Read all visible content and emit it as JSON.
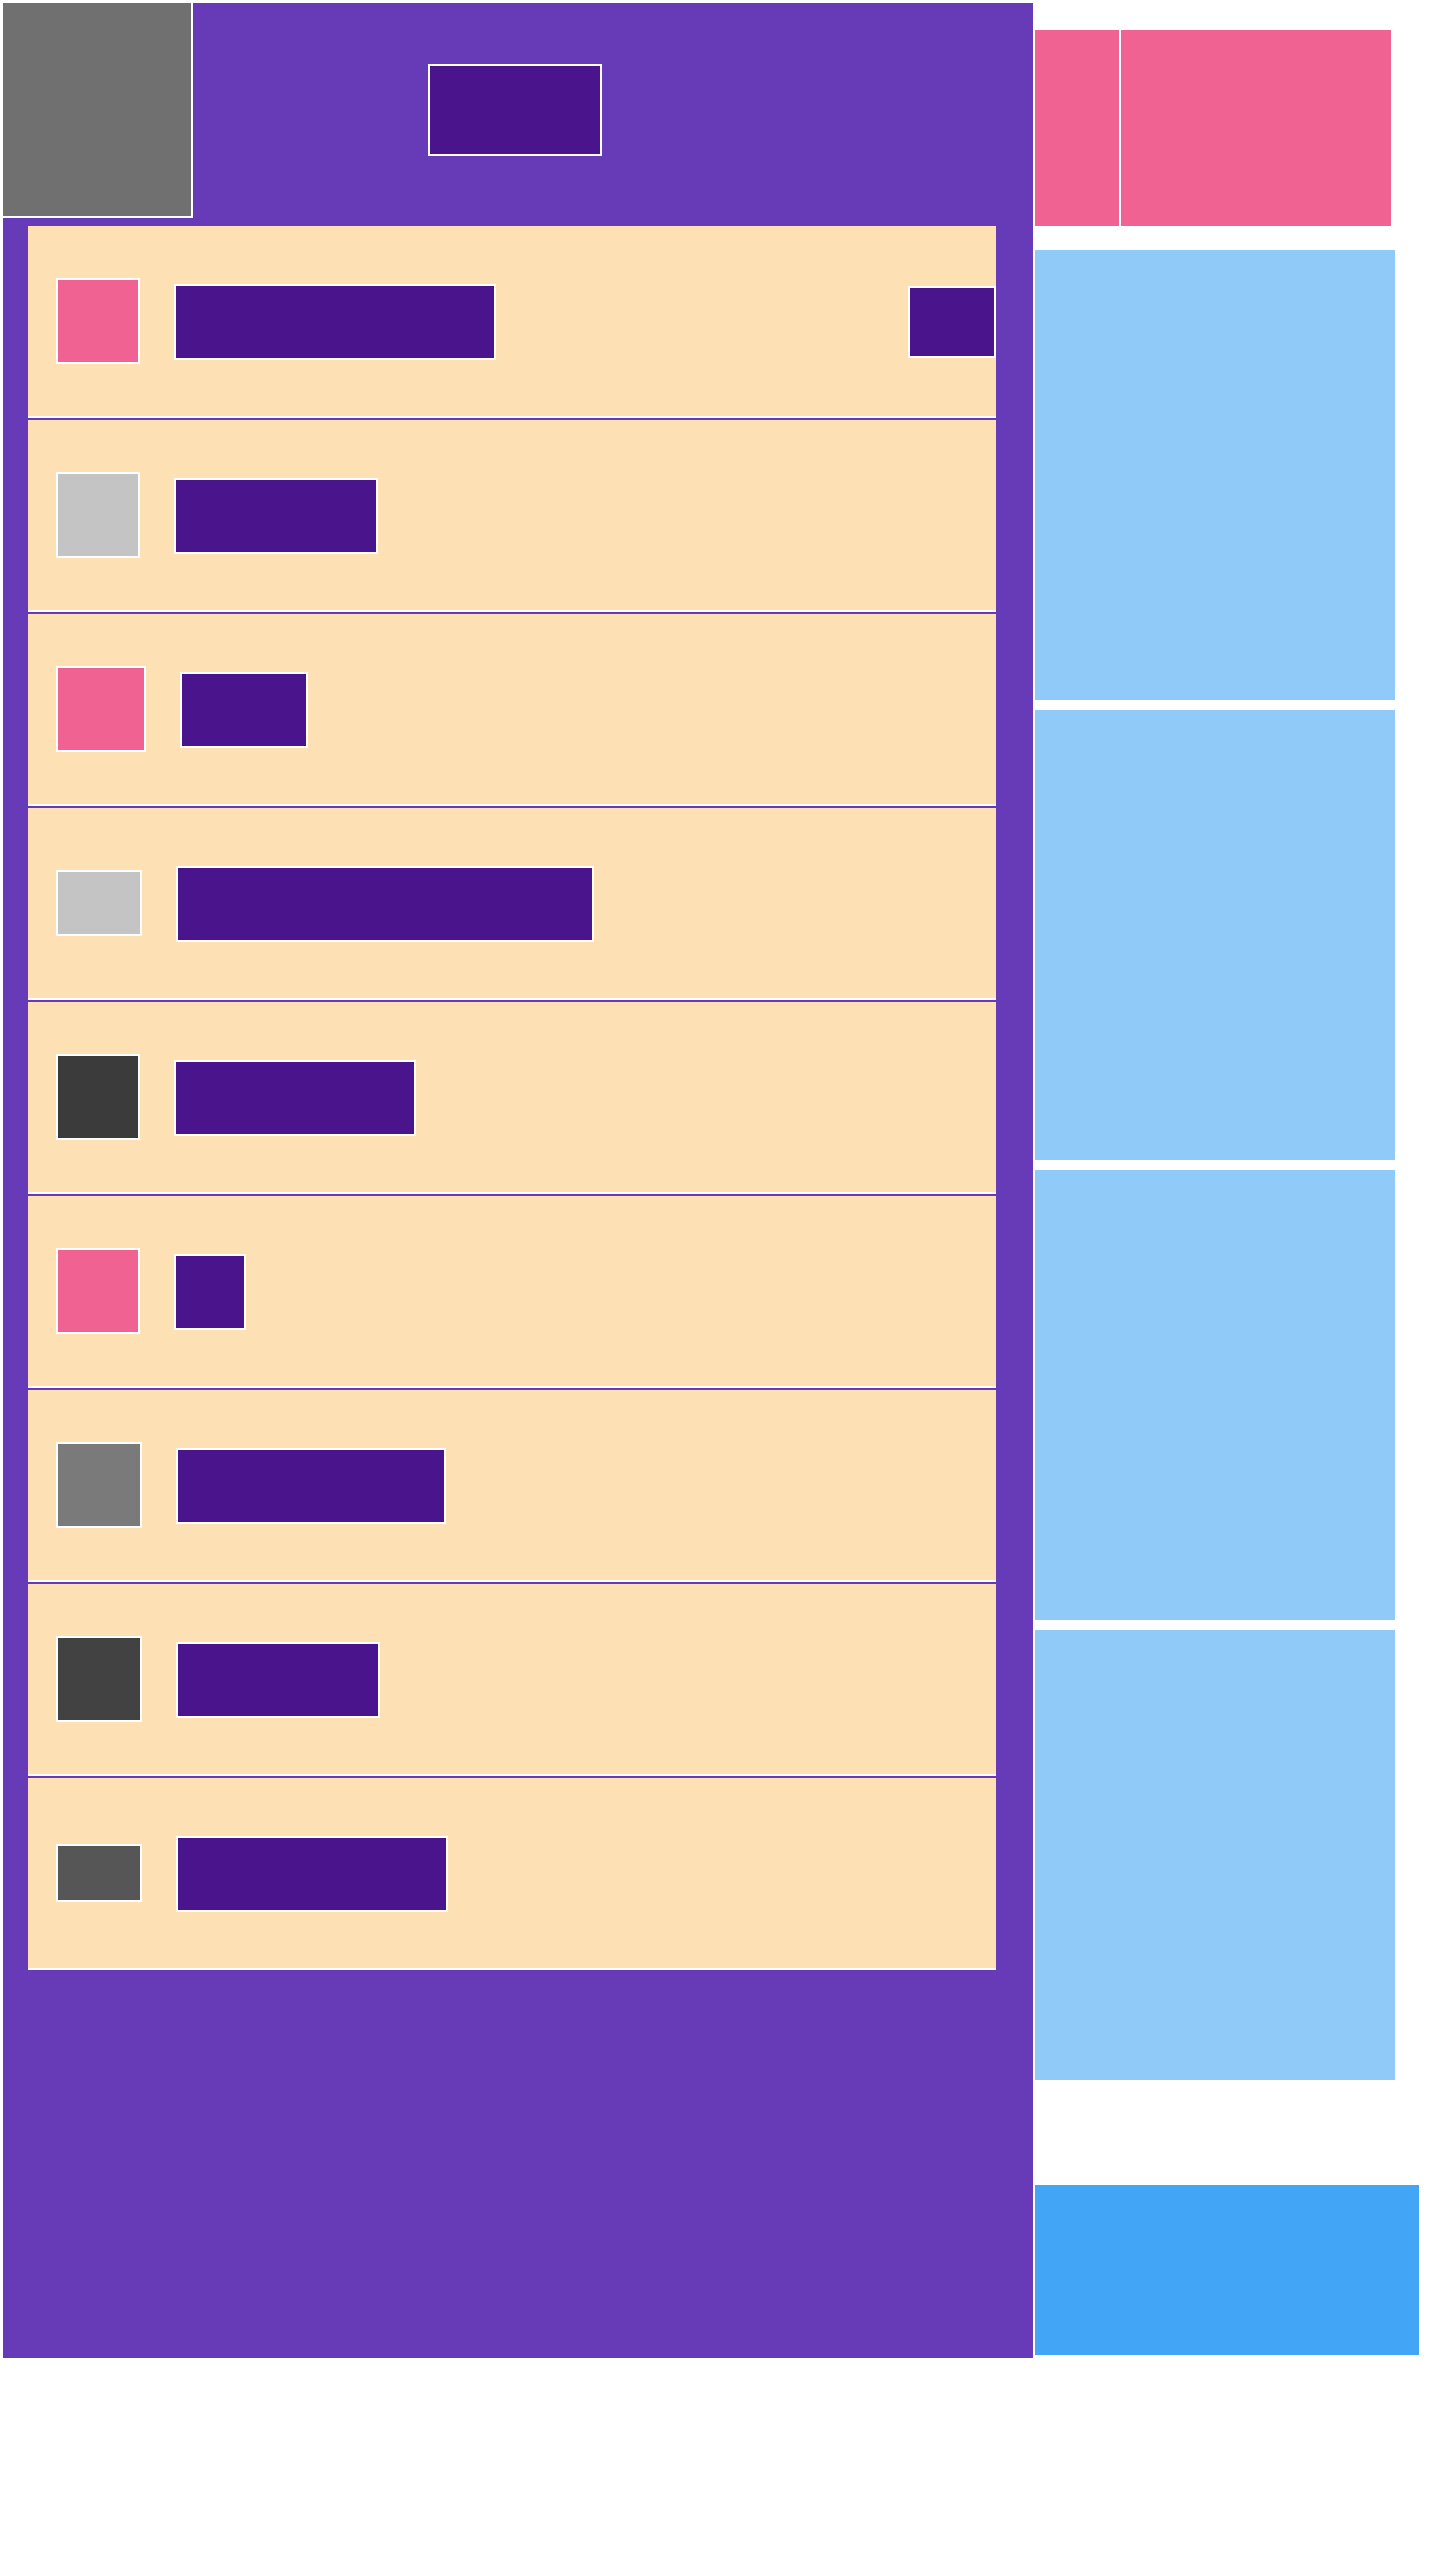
{
  "header": {
    "title": ""
  },
  "list": {
    "items": [
      {
        "label": "",
        "thumb_color": "#f06292",
        "action_label": ""
      },
      {
        "label": "",
        "thumb_color": "#c4c4c4"
      },
      {
        "label": "",
        "thumb_color": "#f06292"
      },
      {
        "label": "",
        "thumb_color": "#c4c4c4"
      },
      {
        "label": "",
        "thumb_color": "#3b3b3b"
      },
      {
        "label": "",
        "thumb_color": "#f06292"
      },
      {
        "label": "",
        "thumb_color": "#7a7a7a"
      },
      {
        "label": "",
        "thumb_color": "#424242"
      },
      {
        "label": "",
        "thumb_color": "#565656"
      }
    ]
  },
  "sidebar": {
    "cards": [
      "",
      "",
      "",
      ""
    ],
    "bottom_button_label": ""
  },
  "colors": {
    "primary": "#673ab7",
    "primary_dark": "#4a148c",
    "accent_pink": "#f06292",
    "row_bg": "#fde0b3",
    "card_blue": "#90caf9",
    "button_blue": "#42a5f5"
  }
}
